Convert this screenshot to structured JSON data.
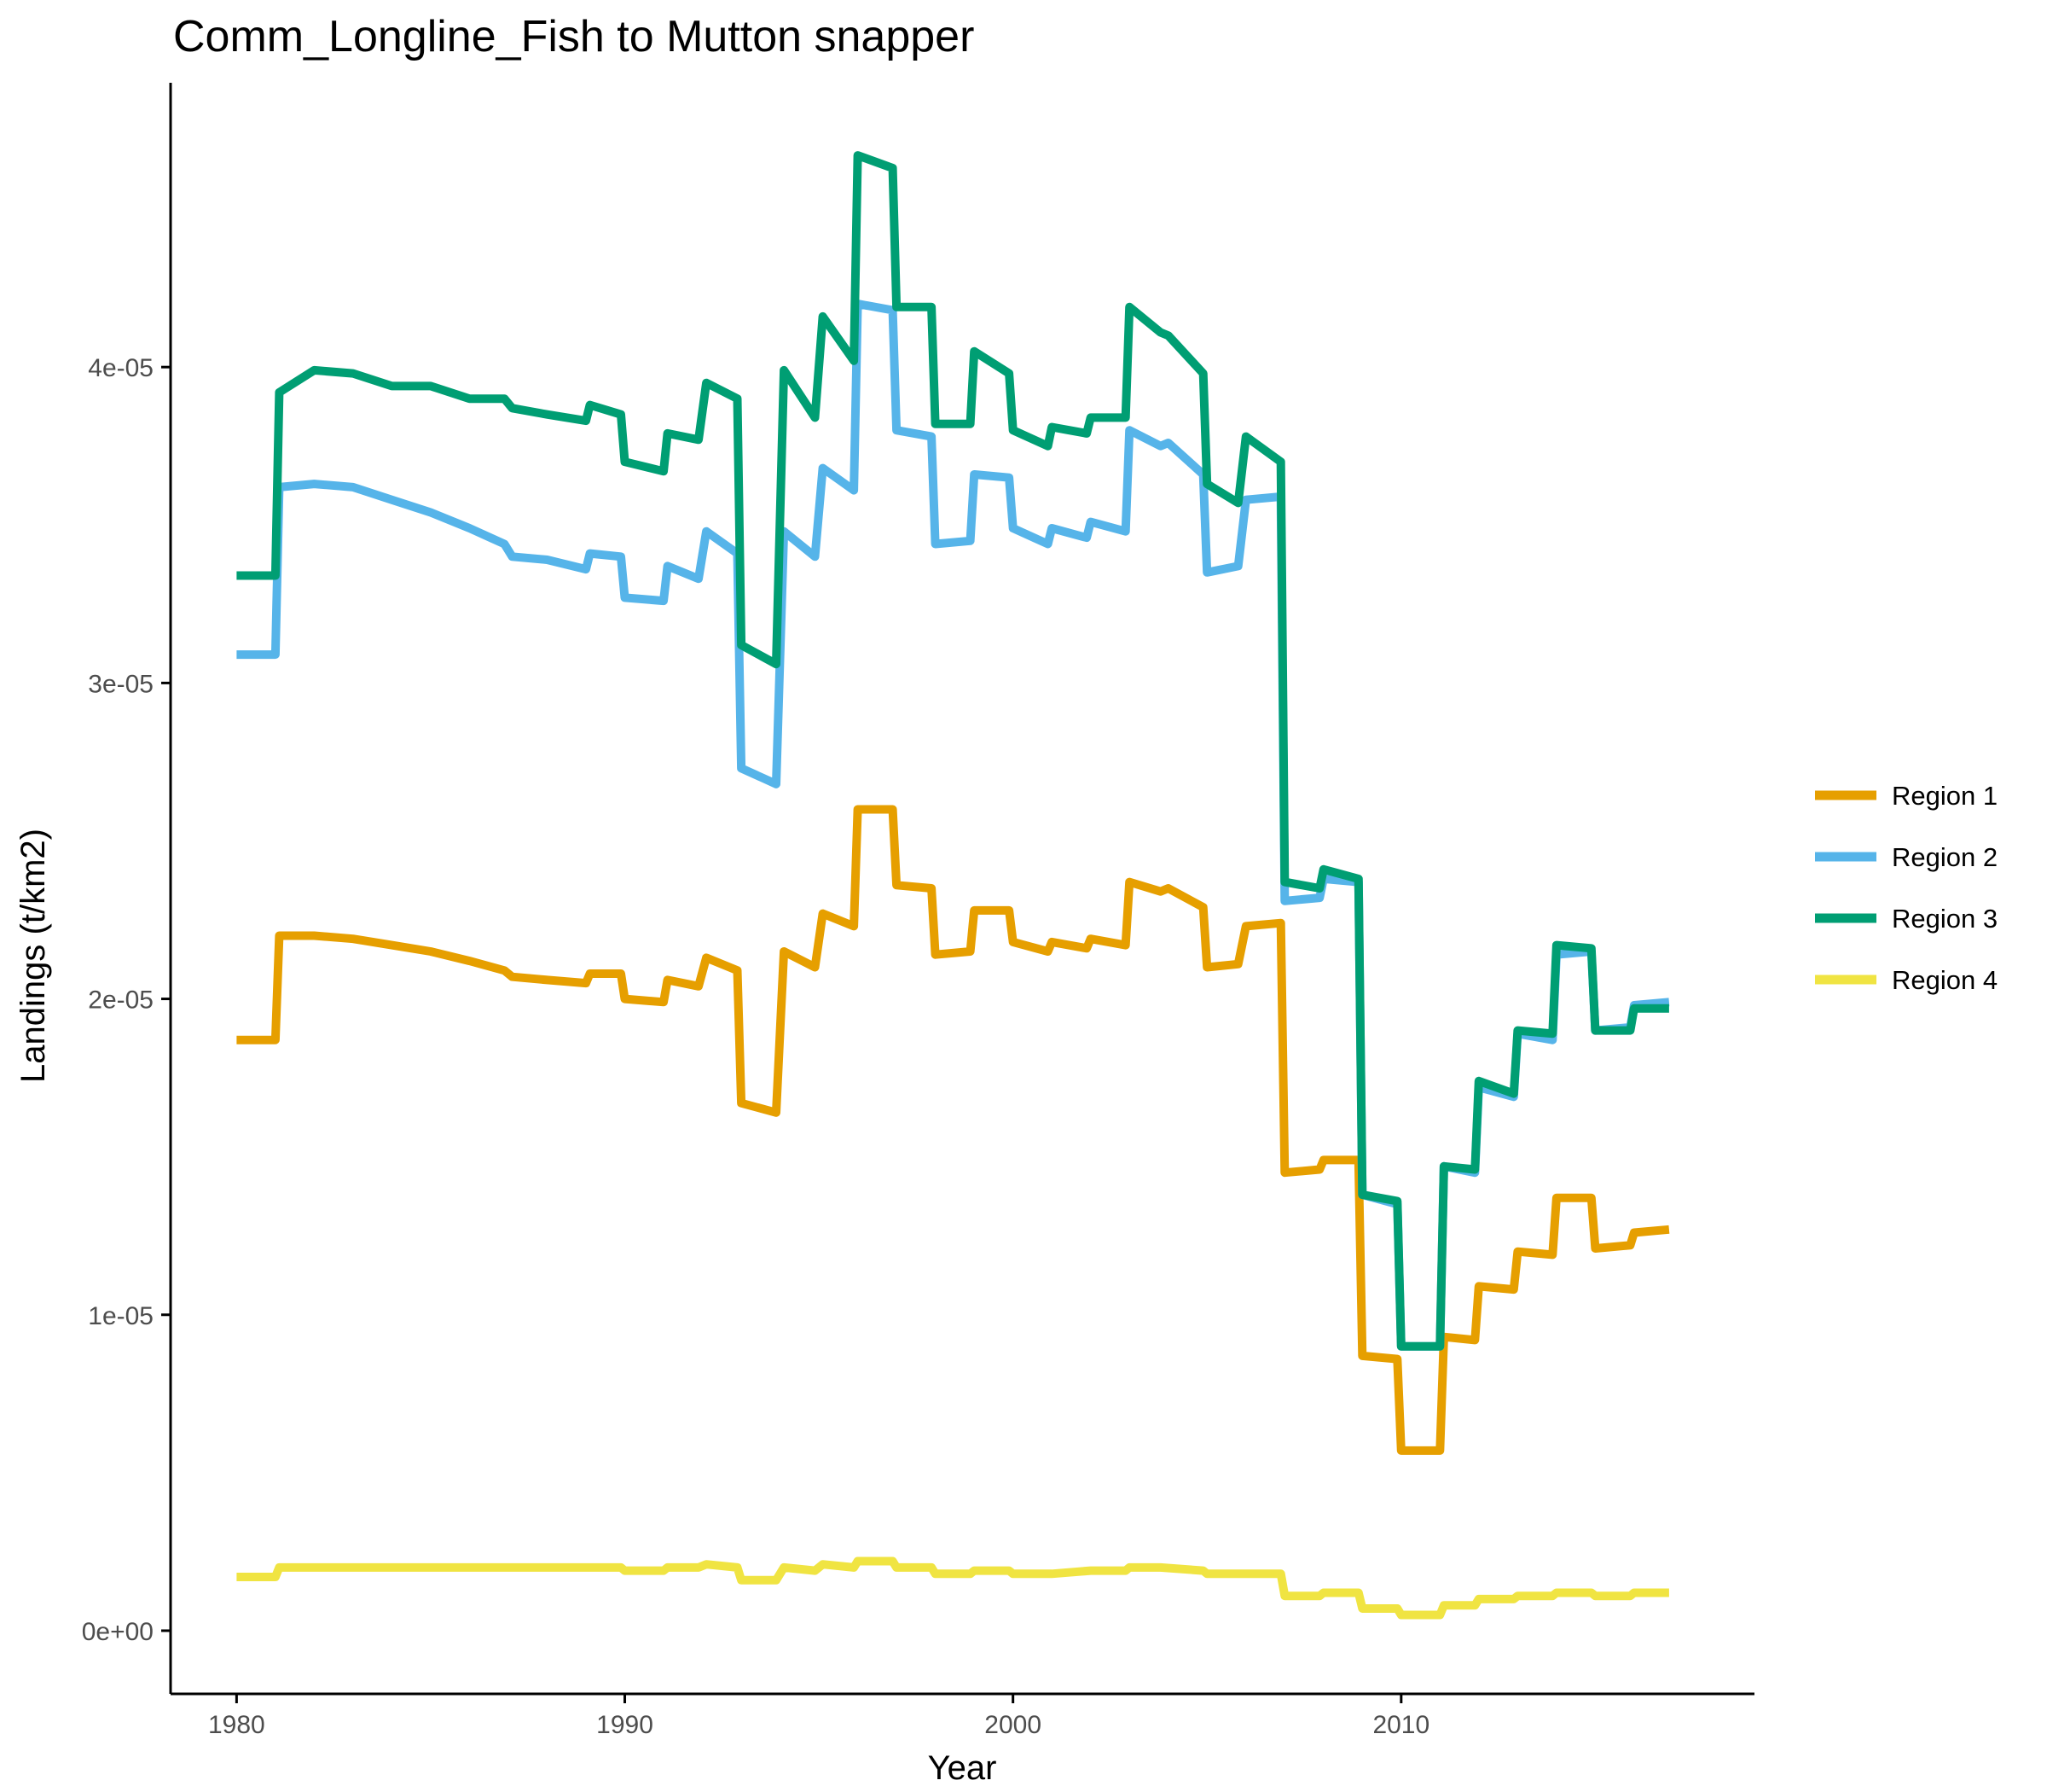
{
  "chart_data": {
    "type": "line",
    "title": "Comm_Longline_Fish to Mutton snapper",
    "xlabel": "Year",
    "ylabel": "Landings (t/km2)",
    "xlim": [
      1978.3,
      2019.1
    ],
    "ylim": [
      -2e-06,
      4.9e-05
    ],
    "x_ticks": [
      1980,
      1990,
      2000,
      2010
    ],
    "x_tick_labels": [
      "1980",
      "1990",
      "2000",
      "2010"
    ],
    "y_ticks": [
      0,
      1e-05,
      2e-05,
      3e-05,
      4e-05
    ],
    "y_tick_labels": [
      "0e+00",
      "1e-05",
      "2e-05",
      "3e-05",
      "4e-05"
    ],
    "legend_position": "right",
    "series": [
      {
        "name": "Region 1",
        "color": "#E69F00",
        "points": [
          [
            1980.0,
            1.87e-05
          ],
          [
            1981.0,
            1.87e-05
          ],
          [
            1981.1,
            2.2e-05
          ],
          [
            1982.0,
            2.2e-05
          ],
          [
            1983.0,
            2.19e-05
          ],
          [
            1984.0,
            2.17e-05
          ],
          [
            1985.0,
            2.15e-05
          ],
          [
            1986.0,
            2.12e-05
          ],
          [
            1986.9,
            2.09e-05
          ],
          [
            1987.1,
            2.07e-05
          ],
          [
            1988.0,
            2.06e-05
          ],
          [
            1989.0,
            2.05e-05
          ],
          [
            1989.1,
            2.08e-05
          ],
          [
            1989.9,
            2.08e-05
          ],
          [
            1990.0,
            2e-05
          ],
          [
            1991.0,
            1.99e-05
          ],
          [
            1991.1,
            2.06e-05
          ],
          [
            1991.9,
            2.04e-05
          ],
          [
            1992.1,
            2.13e-05
          ],
          [
            1992.9,
            2.09e-05
          ],
          [
            1993.0,
            1.67e-05
          ],
          [
            1993.9,
            1.64e-05
          ],
          [
            1994.1,
            2.15e-05
          ],
          [
            1994.9,
            2.1e-05
          ],
          [
            1995.1,
            2.27e-05
          ],
          [
            1995.9,
            2.23e-05
          ],
          [
            1996.0,
            2.6e-05
          ],
          [
            1996.9,
            2.6e-05
          ],
          [
            1997.0,
            2.36e-05
          ],
          [
            1997.9,
            2.35e-05
          ],
          [
            1998.0,
            2.14e-05
          ],
          [
            1998.9,
            2.15e-05
          ],
          [
            1999.0,
            2.28e-05
          ],
          [
            1999.9,
            2.28e-05
          ],
          [
            2000.0,
            2.18e-05
          ],
          [
            2000.9,
            2.15e-05
          ],
          [
            2001.0,
            2.18e-05
          ],
          [
            2001.9,
            2.16e-05
          ],
          [
            2002.0,
            2.19e-05
          ],
          [
            2002.9,
            2.17e-05
          ],
          [
            2003.0,
            2.37e-05
          ],
          [
            2003.8,
            2.34e-05
          ],
          [
            2004.0,
            2.35e-05
          ],
          [
            2004.9,
            2.29e-05
          ],
          [
            2005.0,
            2.1e-05
          ],
          [
            2005.8,
            2.11e-05
          ],
          [
            2006.0,
            2.23e-05
          ],
          [
            2006.9,
            2.24e-05
          ],
          [
            2007.0,
            1.45e-05
          ],
          [
            2007.9,
            1.46e-05
          ],
          [
            2008.0,
            1.49e-05
          ],
          [
            2008.9,
            1.49e-05
          ],
          [
            2009.0,
            8.7e-06
          ],
          [
            2009.9,
            8.6e-06
          ],
          [
            2010.0,
            5.7e-06
          ],
          [
            2011.0,
            5.7e-06
          ],
          [
            2011.1,
            9.3e-06
          ],
          [
            2011.9,
            9.2e-06
          ],
          [
            2012.0,
            1.09e-05
          ],
          [
            2012.9,
            1.08e-05
          ],
          [
            2013.0,
            1.2e-05
          ],
          [
            2013.9,
            1.19e-05
          ],
          [
            2014.0,
            1.37e-05
          ],
          [
            2014.9,
            1.37e-05
          ],
          [
            2015.0,
            1.21e-05
          ],
          [
            2015.9,
            1.22e-05
          ],
          [
            2016.0,
            1.26e-05
          ],
          [
            2016.9,
            1.27e-05
          ]
        ]
      },
      {
        "name": "Region 2",
        "color": "#56B4E9",
        "points": [
          [
            1980.0,
            3.09e-05
          ],
          [
            1981.0,
            3.09e-05
          ],
          [
            1981.1,
            3.62e-05
          ],
          [
            1982.0,
            3.63e-05
          ],
          [
            1983.0,
            3.62e-05
          ],
          [
            1984.0,
            3.58e-05
          ],
          [
            1985.0,
            3.54e-05
          ],
          [
            1986.0,
            3.49e-05
          ],
          [
            1986.9,
            3.44e-05
          ],
          [
            1987.1,
            3.4e-05
          ],
          [
            1988.0,
            3.39e-05
          ],
          [
            1989.0,
            3.36e-05
          ],
          [
            1989.1,
            3.41e-05
          ],
          [
            1989.9,
            3.4e-05
          ],
          [
            1990.0,
            3.27e-05
          ],
          [
            1991.0,
            3.26e-05
          ],
          [
            1991.1,
            3.37e-05
          ],
          [
            1991.9,
            3.33e-05
          ],
          [
            1992.1,
            3.48e-05
          ],
          [
            1992.9,
            3.41e-05
          ],
          [
            1993.0,
            2.73e-05
          ],
          [
            1993.9,
            2.68e-05
          ],
          [
            1994.1,
            3.48e-05
          ],
          [
            1994.9,
            3.4e-05
          ],
          [
            1995.1,
            3.68e-05
          ],
          [
            1995.9,
            3.61e-05
          ],
          [
            1996.0,
            4.2e-05
          ],
          [
            1996.9,
            4.18e-05
          ],
          [
            1997.0,
            3.8e-05
          ],
          [
            1997.9,
            3.78e-05
          ],
          [
            1998.0,
            3.44e-05
          ],
          [
            1998.9,
            3.45e-05
          ],
          [
            1999.0,
            3.66e-05
          ],
          [
            1999.9,
            3.65e-05
          ],
          [
            2000.0,
            3.49e-05
          ],
          [
            2000.9,
            3.44e-05
          ],
          [
            2001.0,
            3.49e-05
          ],
          [
            2001.9,
            3.46e-05
          ],
          [
            2002.0,
            3.51e-05
          ],
          [
            2002.9,
            3.48e-05
          ],
          [
            2003.0,
            3.8e-05
          ],
          [
            2003.8,
            3.75e-05
          ],
          [
            2004.0,
            3.76e-05
          ],
          [
            2004.9,
            3.66e-05
          ],
          [
            2005.0,
            3.35e-05
          ],
          [
            2005.8,
            3.37e-05
          ],
          [
            2006.0,
            3.58e-05
          ],
          [
            2006.9,
            3.59e-05
          ],
          [
            2007.0,
            2.31e-05
          ],
          [
            2007.9,
            2.32e-05
          ],
          [
            2008.0,
            2.38e-05
          ],
          [
            2008.9,
            2.37e-05
          ],
          [
            2009.0,
            1.38e-05
          ],
          [
            2009.9,
            1.35e-05
          ],
          [
            2010.0,
            9e-06
          ],
          [
            2011.0,
            9e-06
          ],
          [
            2011.1,
            1.47e-05
          ],
          [
            2011.9,
            1.45e-05
          ],
          [
            2012.0,
            1.72e-05
          ],
          [
            2012.9,
            1.69e-05
          ],
          [
            2013.0,
            1.89e-05
          ],
          [
            2013.9,
            1.87e-05
          ],
          [
            2014.0,
            2.14e-05
          ],
          [
            2014.9,
            2.15e-05
          ],
          [
            2015.0,
            1.9e-05
          ],
          [
            2015.9,
            1.91e-05
          ],
          [
            2016.0,
            1.98e-05
          ],
          [
            2016.9,
            1.99e-05
          ]
        ]
      },
      {
        "name": "Region 3",
        "color": "#009E73",
        "points": [
          [
            1980.0,
            3.34e-05
          ],
          [
            1981.0,
            3.34e-05
          ],
          [
            1981.1,
            3.92e-05
          ],
          [
            1982.0,
            3.99e-05
          ],
          [
            1983.0,
            3.98e-05
          ],
          [
            1984.0,
            3.94e-05
          ],
          [
            1985.0,
            3.94e-05
          ],
          [
            1986.0,
            3.9e-05
          ],
          [
            1986.9,
            3.9e-05
          ],
          [
            1987.1,
            3.87e-05
          ],
          [
            1988.0,
            3.85e-05
          ],
          [
            1989.0,
            3.83e-05
          ],
          [
            1989.1,
            3.88e-05
          ],
          [
            1989.9,
            3.85e-05
          ],
          [
            1990.0,
            3.7e-05
          ],
          [
            1991.0,
            3.67e-05
          ],
          [
            1991.1,
            3.79e-05
          ],
          [
            1991.9,
            3.77e-05
          ],
          [
            1992.1,
            3.95e-05
          ],
          [
            1992.9,
            3.9e-05
          ],
          [
            1993.0,
            3.12e-05
          ],
          [
            1993.9,
            3.06e-05
          ],
          [
            1994.1,
            3.99e-05
          ],
          [
            1994.9,
            3.84e-05
          ],
          [
            1995.1,
            4.16e-05
          ],
          [
            1995.9,
            4.02e-05
          ],
          [
            1996.0,
            4.67e-05
          ],
          [
            1996.9,
            4.63e-05
          ],
          [
            1997.0,
            4.19e-05
          ],
          [
            1997.9,
            4.19e-05
          ],
          [
            1998.0,
            3.82e-05
          ],
          [
            1998.9,
            3.82e-05
          ],
          [
            1999.0,
            4.05e-05
          ],
          [
            1999.9,
            3.98e-05
          ],
          [
            2000.0,
            3.8e-05
          ],
          [
            2000.9,
            3.75e-05
          ],
          [
            2001.0,
            3.81e-05
          ],
          [
            2001.9,
            3.79e-05
          ],
          [
            2002.0,
            3.84e-05
          ],
          [
            2002.9,
            3.84e-05
          ],
          [
            2003.0,
            4.19e-05
          ],
          [
            2003.8,
            4.11e-05
          ],
          [
            2004.0,
            4.1e-05
          ],
          [
            2004.9,
            3.98e-05
          ],
          [
            2005.0,
            3.63e-05
          ],
          [
            2005.8,
            3.57e-05
          ],
          [
            2006.0,
            3.78e-05
          ],
          [
            2006.9,
            3.7e-05
          ],
          [
            2007.0,
            2.37e-05
          ],
          [
            2007.9,
            2.35e-05
          ],
          [
            2008.0,
            2.41e-05
          ],
          [
            2008.9,
            2.38e-05
          ],
          [
            2009.0,
            1.38e-05
          ],
          [
            2009.9,
            1.36e-05
          ],
          [
            2010.0,
            9e-06
          ],
          [
            2011.0,
            9e-06
          ],
          [
            2011.1,
            1.47e-05
          ],
          [
            2011.9,
            1.46e-05
          ],
          [
            2012.0,
            1.74e-05
          ],
          [
            2012.9,
            1.7e-05
          ],
          [
            2013.0,
            1.9e-05
          ],
          [
            2013.9,
            1.89e-05
          ],
          [
            2014.0,
            2.17e-05
          ],
          [
            2014.9,
            2.16e-05
          ],
          [
            2015.0,
            1.9e-05
          ],
          [
            2015.9,
            1.9e-05
          ],
          [
            2016.0,
            1.97e-05
          ],
          [
            2016.9,
            1.97e-05
          ]
        ]
      },
      {
        "name": "Region 4",
        "color": "#F0E442",
        "points": [
          [
            1980.0,
            1.7e-06
          ],
          [
            1981.0,
            1.7e-06
          ],
          [
            1981.1,
            2e-06
          ],
          [
            1982.0,
            2e-06
          ],
          [
            1983.0,
            2e-06
          ],
          [
            1984.0,
            2e-06
          ],
          [
            1985.0,
            2e-06
          ],
          [
            1986.0,
            2e-06
          ],
          [
            1986.9,
            2e-06
          ],
          [
            1987.1,
            2e-06
          ],
          [
            1988.0,
            2e-06
          ],
          [
            1989.0,
            2e-06
          ],
          [
            1989.9,
            2e-06
          ],
          [
            1990.0,
            1.9e-06
          ],
          [
            1991.0,
            1.9e-06
          ],
          [
            1991.1,
            2e-06
          ],
          [
            1991.9,
            2e-06
          ],
          [
            1992.1,
            2.1e-06
          ],
          [
            1992.9,
            2e-06
          ],
          [
            1993.0,
            1.6e-06
          ],
          [
            1993.9,
            1.6e-06
          ],
          [
            1994.1,
            2e-06
          ],
          [
            1994.9,
            1.9e-06
          ],
          [
            1995.1,
            2.1e-06
          ],
          [
            1995.9,
            2e-06
          ],
          [
            1996.0,
            2.2e-06
          ],
          [
            1996.9,
            2.2e-06
          ],
          [
            1997.0,
            2e-06
          ],
          [
            1997.9,
            2e-06
          ],
          [
            1998.0,
            1.8e-06
          ],
          [
            1998.9,
            1.8e-06
          ],
          [
            1999.0,
            1.9e-06
          ],
          [
            1999.9,
            1.9e-06
          ],
          [
            2000.0,
            1.8e-06
          ],
          [
            2000.9,
            1.8e-06
          ],
          [
            2001.0,
            1.8e-06
          ],
          [
            2002.0,
            1.9e-06
          ],
          [
            2002.9,
            1.9e-06
          ],
          [
            2003.0,
            2e-06
          ],
          [
            2003.8,
            2e-06
          ],
          [
            2004.9,
            1.9e-06
          ],
          [
            2005.0,
            1.8e-06
          ],
          [
            2005.8,
            1.8e-06
          ],
          [
            2006.0,
            1.8e-06
          ],
          [
            2006.9,
            1.8e-06
          ],
          [
            2007.0,
            1.1e-06
          ],
          [
            2007.9,
            1.1e-06
          ],
          [
            2008.0,
            1.2e-06
          ],
          [
            2008.9,
            1.2e-06
          ],
          [
            2009.0,
            7e-07
          ],
          [
            2009.9,
            7e-07
          ],
          [
            2010.0,
            5e-07
          ],
          [
            2011.0,
            5e-07
          ],
          [
            2011.1,
            8e-07
          ],
          [
            2011.9,
            8e-07
          ],
          [
            2012.0,
            1e-06
          ],
          [
            2012.9,
            1e-06
          ],
          [
            2013.0,
            1.1e-06
          ],
          [
            2013.9,
            1.1e-06
          ],
          [
            2014.0,
            1.2e-06
          ],
          [
            2014.9,
            1.2e-06
          ],
          [
            2015.0,
            1.1e-06
          ],
          [
            2015.9,
            1.1e-06
          ],
          [
            2016.0,
            1.2e-06
          ],
          [
            2016.9,
            1.2e-06
          ]
        ]
      }
    ]
  }
}
